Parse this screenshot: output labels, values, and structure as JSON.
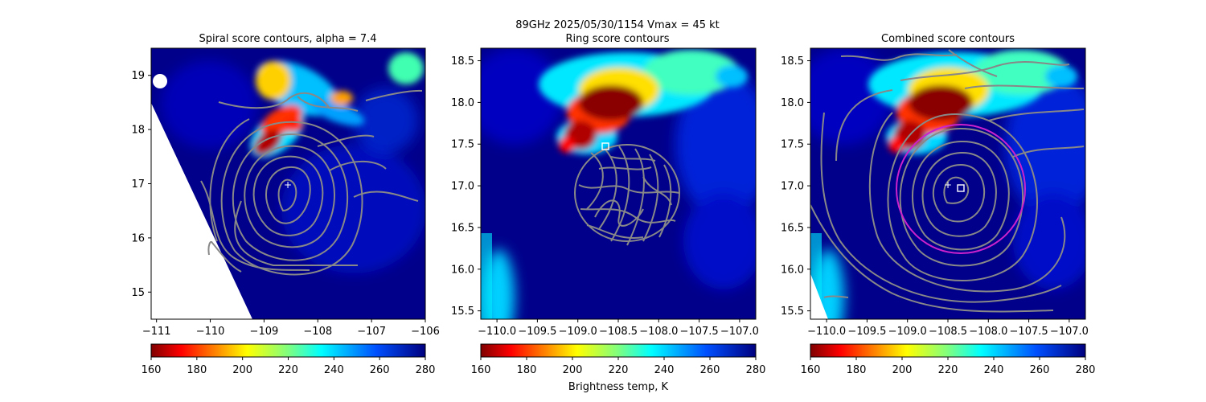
{
  "suptitle_line1": "89GHz  2025/05/30/1154    Vmax = 45 kt",
  "chart_data": [
    {
      "type": "heatmap",
      "title": "Spiral score contours, alpha =  7.4",
      "xlim": [
        -111.1,
        -106.0
      ],
      "ylim": [
        14.5,
        19.5
      ],
      "xticks": [
        -111,
        -110,
        -109,
        -108,
        -107,
        -106
      ],
      "xticklabels": [
        "−111",
        "−110",
        "−109",
        "−108",
        "−107",
        "−106"
      ],
      "yticks": [
        15,
        16,
        17,
        18,
        19
      ],
      "yticklabels": [
        "15",
        "16",
        "17",
        "18",
        "19"
      ],
      "center_marker": {
        "symbol": "+",
        "x": -108.5,
        "y": 17.0
      },
      "convection_core": {
        "x": -108.8,
        "y": 17.9,
        "tb_k": 165
      },
      "contour_color": "#888888",
      "colorbar": {
        "min": 160,
        "max": 280,
        "ticks": [
          "160",
          "180",
          "200",
          "220",
          "240",
          "260",
          "280"
        ],
        "cmap": "jet_r"
      }
    },
    {
      "type": "heatmap",
      "title": "Ring score contours",
      "xlabel_colorbar": "Brightness temp, K",
      "xlim": [
        -110.2,
        -106.8
      ],
      "ylim": [
        15.4,
        18.65
      ],
      "xticks": [
        -110.0,
        -109.5,
        -109.0,
        -108.5,
        -108.0,
        -107.5,
        -107.0
      ],
      "xticklabels": [
        "−110.0",
        "−109.5",
        "−109.0",
        "−108.5",
        "−108.0",
        "−107.5",
        "−107.0"
      ],
      "yticks": [
        15.5,
        16.0,
        16.5,
        17.0,
        17.5,
        18.0,
        18.5
      ],
      "yticklabels": [
        "15.5",
        "16.0",
        "16.5",
        "17.0",
        "17.5",
        "18.0",
        "18.5"
      ],
      "square_marker": {
        "x": -108.65,
        "y": 17.46
      },
      "convection_core": {
        "x": -108.75,
        "y": 17.95,
        "tb_k": 165
      },
      "contour_color": "#888888",
      "colorbar": {
        "min": 160,
        "max": 280,
        "ticks": [
          "160",
          "180",
          "200",
          "220",
          "240",
          "260",
          "280"
        ],
        "cmap": "jet_r"
      }
    },
    {
      "type": "heatmap",
      "title": "Combined score contours",
      "xlim": [
        -110.2,
        -106.8
      ],
      "ylim": [
        15.4,
        18.65
      ],
      "xticks": [
        -110.0,
        -109.5,
        -109.0,
        -108.5,
        -108.0,
        -107.5,
        -107.0
      ],
      "xticklabels": [
        "−110.0",
        "−109.5",
        "−109.0",
        "−108.5",
        "−108.0",
        "−107.5",
        "−107.0"
      ],
      "yticks": [
        15.5,
        16.0,
        16.5,
        17.0,
        17.5,
        18.0,
        18.5
      ],
      "yticklabels": [
        "15.5",
        "16.0",
        "16.5",
        "17.0",
        "17.5",
        "18.0",
        "18.5"
      ],
      "center_marker": {
        "symbol": "+",
        "x": -108.5,
        "y": 17.0
      },
      "square_marker": {
        "x": -108.35,
        "y": 16.96
      },
      "circle": {
        "cx": -108.4,
        "cy": 16.96,
        "r_deg": 0.75,
        "color": "#cc22cc"
      },
      "convection_core": {
        "x": -108.75,
        "y": 17.95,
        "tb_k": 165
      },
      "contour_color": "#888888",
      "colorbar": {
        "min": 160,
        "max": 280,
        "ticks": [
          "160",
          "180",
          "200",
          "220",
          "240",
          "260",
          "280"
        ],
        "cmap": "jet_r"
      }
    }
  ],
  "colors": {
    "background_field": "#00008b",
    "warm": "#7f0000",
    "ring_circle": "#cc22cc"
  }
}
